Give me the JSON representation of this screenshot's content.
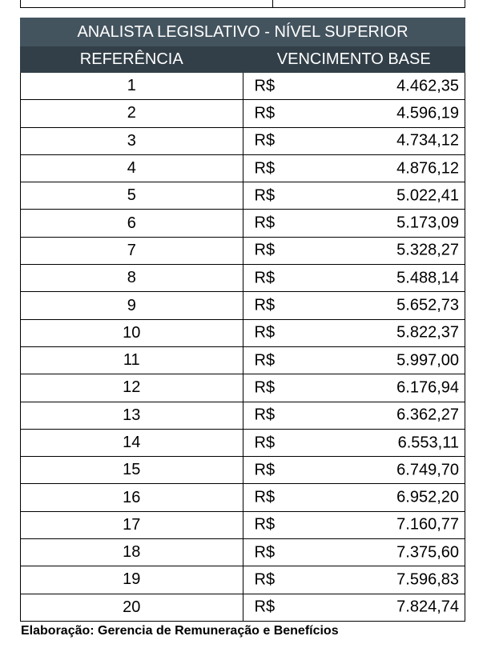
{
  "table": {
    "title": "ANALISTA LEGISLATIVO - NÍVEL SUPERIOR",
    "headers": [
      "REFERÊNCIA",
      "VENCIMENTO BASE"
    ],
    "rows": [
      [
        "1",
        "R$",
        "4.462,35"
      ],
      [
        "2",
        "R$",
        "4.596,19"
      ],
      [
        "3",
        "R$",
        "4.734,12"
      ],
      [
        "4",
        "R$",
        "4.876,12"
      ],
      [
        "5",
        "R$",
        "5.022,41"
      ],
      [
        "6",
        "R$",
        "5.173,09"
      ],
      [
        "7",
        "R$",
        "5.328,27"
      ],
      [
        "8",
        "R$",
        "5.488,14"
      ],
      [
        "9",
        "R$",
        "5.652,73"
      ],
      [
        "10",
        "R$",
        "5.822,37"
      ],
      [
        "11",
        "R$",
        "5.997,00"
      ],
      [
        "12",
        "R$",
        "6.176,94"
      ],
      [
        "13",
        "R$",
        "6.362,27"
      ],
      [
        "14",
        "R$",
        "6.553,11"
      ],
      [
        "15",
        "R$",
        "6.749,70"
      ],
      [
        "16",
        "R$",
        "6.952,20"
      ],
      [
        "17",
        "R$",
        "7.160,77"
      ],
      [
        "18",
        "R$",
        "7.375,60"
      ],
      [
        "19",
        "R$",
        "7.596,83"
      ],
      [
        "20",
        "R$",
        "7.824,74"
      ]
    ]
  },
  "footer": "Elaboração: Gerencia de Remuneração e Benefícios"
}
